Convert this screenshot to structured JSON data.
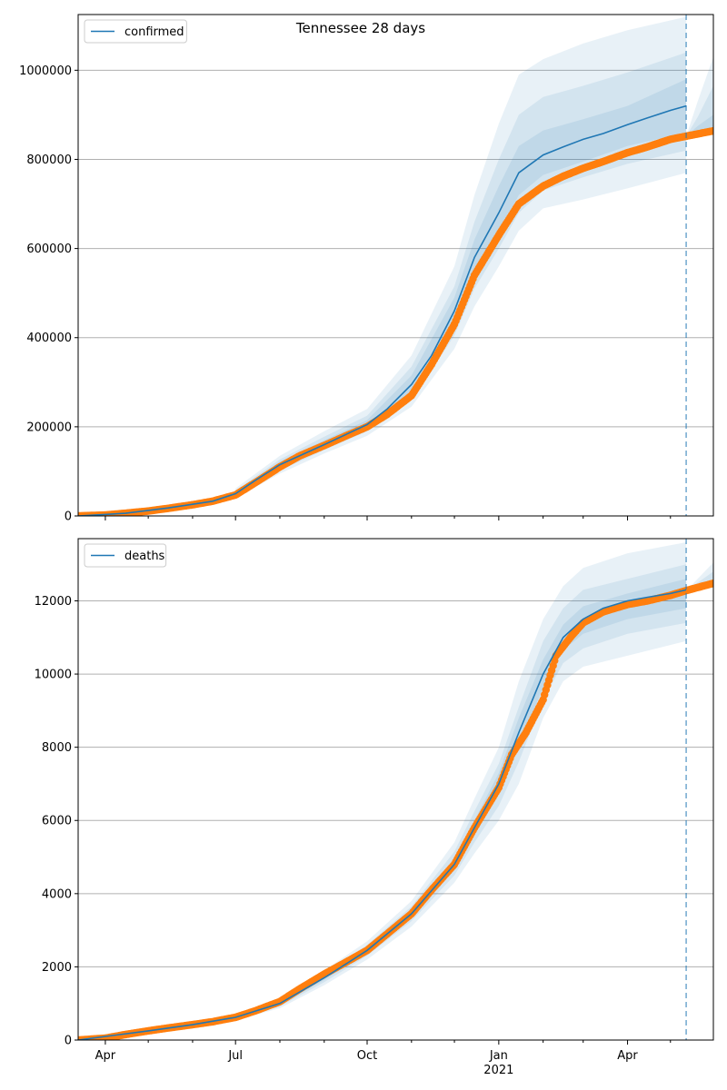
{
  "title": "Tennessee 28 days",
  "colors": {
    "forecast": "#1f77b4",
    "band": "#1f77b4",
    "observed": "#ff7f0e",
    "grid": "#b0b0b0",
    "vline": "#1f77b4"
  },
  "x_axis": {
    "range": [
      "2020-03-13",
      "2021-05-31"
    ],
    "tick_labels": [
      {
        "date": "2020-04-01",
        "label": "Apr"
      },
      {
        "date": "2020-07-01",
        "label": "Jul"
      },
      {
        "date": "2020-10-01",
        "label": "Oct"
      },
      {
        "date": "2021-01-01",
        "label": "Jan"
      },
      {
        "date": "2021-04-01",
        "label": "Apr"
      }
    ],
    "year_label": "2021"
  },
  "forecast_start": "2021-05-12",
  "chart_data": [
    {
      "type": "line",
      "legend": [
        "confirmed"
      ],
      "legend_position": "upper-left",
      "grid": true,
      "ylim": [
        0,
        1125000
      ],
      "yticks": [
        0,
        200000,
        400000,
        600000,
        800000,
        1000000
      ],
      "ytick_labels": [
        "0",
        "200000",
        "400000",
        "600000",
        "800000",
        "1000000"
      ],
      "series": [
        {
          "name": "confirmed",
          "kind": "forecast-median",
          "x": [
            "2020-03-13",
            "2020-04-15",
            "2020-05-15",
            "2020-06-15",
            "2020-07-01",
            "2020-07-15",
            "2020-08-01",
            "2020-09-01",
            "2020-10-01",
            "2020-10-15",
            "2020-11-01",
            "2020-11-15",
            "2020-12-01",
            "2020-12-15",
            "2021-01-01",
            "2021-01-15",
            "2021-02-01",
            "2021-02-15",
            "2021-03-01",
            "2021-03-15",
            "2021-04-01",
            "2021-04-15",
            "2021-05-01",
            "2021-05-12"
          ],
          "y": [
            0,
            6000,
            18000,
            33000,
            50000,
            80000,
            115000,
            160000,
            205000,
            240000,
            295000,
            360000,
            460000,
            580000,
            680000,
            770000,
            810000,
            828000,
            845000,
            858000,
            878000,
            893000,
            910000,
            920000
          ]
        },
        {
          "kind": "observed",
          "x": [
            "2020-03-13",
            "2020-04-01",
            "2020-04-15",
            "2020-05-01",
            "2020-05-15",
            "2020-06-01",
            "2020-06-15",
            "2020-07-01",
            "2020-07-15",
            "2020-08-01",
            "2020-08-15",
            "2020-09-01",
            "2020-09-15",
            "2020-10-01",
            "2020-10-15",
            "2020-11-01",
            "2020-11-15",
            "2020-12-01",
            "2020-12-15",
            "2021-01-01",
            "2021-01-15",
            "2021-02-01",
            "2021-02-15",
            "2021-03-01",
            "2021-03-15",
            "2021-04-01",
            "2021-04-15",
            "2021-05-01",
            "2021-05-12",
            "2021-05-31"
          ],
          "y": [
            0,
            2000,
            6000,
            11000,
            17000,
            25000,
            33000,
            47000,
            75000,
            110000,
            135000,
            158000,
            178000,
            200000,
            228000,
            270000,
            340000,
            430000,
            540000,
            630000,
            700000,
            740000,
            762000,
            780000,
            795000,
            815000,
            828000,
            845000,
            852000,
            864000
          ]
        }
      ],
      "bands": [
        {
          "x": [
            "2020-07-01",
            "2020-08-01",
            "2020-09-01",
            "2020-10-01",
            "2020-11-01",
            "2020-12-01",
            "2020-12-15",
            "2021-01-01",
            "2021-01-15",
            "2021-02-01",
            "2021-03-01",
            "2021-04-01",
            "2021-05-12"
          ],
          "lower": [
            40000,
            95000,
            140000,
            180000,
            245000,
            375000,
            470000,
            560000,
            640000,
            690000,
            710000,
            735000,
            770000
          ],
          "upper": [
            62000,
            135000,
            190000,
            240000,
            360000,
            560000,
            720000,
            880000,
            990000,
            1025000,
            1060000,
            1090000,
            1120000
          ]
        },
        {
          "x": [
            "2020-07-01",
            "2020-08-01",
            "2020-09-01",
            "2020-10-01",
            "2020-11-01",
            "2020-12-01",
            "2020-12-15",
            "2021-01-01",
            "2021-01-15",
            "2021-02-01",
            "2021-03-01",
            "2021-04-01",
            "2021-05-12"
          ],
          "lower": [
            44000,
            102000,
            148000,
            190000,
            260000,
            405000,
            510000,
            600000,
            680000,
            730000,
            760000,
            790000,
            820000
          ],
          "upper": [
            57000,
            127000,
            178000,
            225000,
            335000,
            515000,
            660000,
            800000,
            900000,
            940000,
            965000,
            995000,
            1040000
          ]
        },
        {
          "x": [
            "2020-07-01",
            "2020-08-01",
            "2020-09-01",
            "2020-10-01",
            "2020-11-01",
            "2020-12-01",
            "2020-12-15",
            "2021-01-01",
            "2021-01-15",
            "2021-02-01",
            "2021-03-01",
            "2021-04-01",
            "2021-05-12"
          ],
          "lower": [
            47000,
            108000,
            153000,
            196000,
            275000,
            430000,
            540000,
            635000,
            720000,
            765000,
            795000,
            830000,
            860000
          ],
          "upper": [
            54000,
            122000,
            170000,
            215000,
            315000,
            490000,
            620000,
            740000,
            830000,
            865000,
            890000,
            920000,
            980000
          ]
        },
        {
          "x": [
            "2021-05-12",
            "2021-05-20",
            "2021-05-31"
          ],
          "lower": [
            852000,
            856000,
            860000
          ],
          "upper": [
            852000,
            930000,
            1030000
          ]
        },
        {
          "x": [
            "2021-05-12",
            "2021-05-20",
            "2021-05-31"
          ],
          "lower": [
            852000,
            857000,
            862000
          ],
          "upper": [
            852000,
            895000,
            965000
          ]
        },
        {
          "x": [
            "2021-05-12",
            "2021-05-20",
            "2021-05-31"
          ],
          "lower": [
            852000,
            858000,
            864000
          ],
          "upper": [
            852000,
            875000,
            900000
          ]
        }
      ]
    },
    {
      "type": "line",
      "legend": [
        "deaths"
      ],
      "legend_position": "upper-left",
      "grid": true,
      "ylim": [
        0,
        13700
      ],
      "yticks": [
        0,
        2000,
        4000,
        6000,
        8000,
        10000,
        12000
      ],
      "ytick_labels": [
        "0",
        "2000",
        "4000",
        "6000",
        "8000",
        "10000",
        "12000"
      ],
      "series": [
        {
          "name": "deaths",
          "kind": "forecast-median",
          "x": [
            "2020-03-13",
            "2020-05-01",
            "2020-06-01",
            "2020-07-01",
            "2020-08-01",
            "2020-09-01",
            "2020-10-01",
            "2020-11-01",
            "2020-12-01",
            "2020-12-15",
            "2021-01-01",
            "2021-01-15",
            "2021-02-01",
            "2021-02-15",
            "2021-03-01",
            "2021-03-15",
            "2021-04-01",
            "2021-04-15",
            "2021-05-01",
            "2021-05-12"
          ],
          "y": [
            0,
            250,
            420,
            620,
            1000,
            1700,
            2450,
            3450,
            4800,
            5800,
            7000,
            8400,
            10000,
            11000,
            11500,
            11800,
            12000,
            12100,
            12200,
            12300
          ]
        },
        {
          "kind": "observed",
          "x": [
            "2020-03-13",
            "2020-04-01",
            "2020-04-15",
            "2020-05-01",
            "2020-05-15",
            "2020-06-01",
            "2020-06-15",
            "2020-07-01",
            "2020-07-15",
            "2020-08-01",
            "2020-08-15",
            "2020-09-01",
            "2020-09-15",
            "2020-10-01",
            "2020-10-15",
            "2020-11-01",
            "2020-11-15",
            "2020-12-01",
            "2020-12-15",
            "2021-01-01",
            "2021-01-10",
            "2021-01-20",
            "2021-02-01",
            "2021-02-10",
            "2021-02-20",
            "2021-03-01",
            "2021-03-15",
            "2021-04-01",
            "2021-04-15",
            "2021-05-01",
            "2021-05-12",
            "2021-05-31"
          ],
          "y": [
            0,
            50,
            150,
            250,
            330,
            420,
            500,
            620,
            800,
            1050,
            1400,
            1800,
            2100,
            2450,
            2900,
            3450,
            4100,
            4800,
            5800,
            6900,
            7800,
            8400,
            9300,
            10500,
            11000,
            11400,
            11700,
            11900,
            12000,
            12150,
            12280,
            12480
          ]
        }
      ],
      "bands": [
        {
          "x": [
            "2020-07-01",
            "2020-08-01",
            "2020-09-01",
            "2020-10-01",
            "2020-11-01",
            "2020-12-01",
            "2020-12-15",
            "2021-01-01",
            "2021-01-15",
            "2021-02-01",
            "2021-02-15",
            "2021-03-01",
            "2021-04-01",
            "2021-05-12"
          ],
          "lower": [
            540,
            870,
            1500,
            2200,
            3100,
            4300,
            5100,
            6000,
            7000,
            8800,
            9800,
            10200,
            10500,
            10900
          ],
          "upper": [
            700,
            1150,
            1900,
            2700,
            3800,
            5400,
            6600,
            8000,
            9800,
            11500,
            12400,
            12900,
            13300,
            13600
          ]
        },
        {
          "x": [
            "2020-07-01",
            "2020-08-01",
            "2020-09-01",
            "2020-10-01",
            "2020-11-01",
            "2020-12-01",
            "2020-12-15",
            "2021-01-01",
            "2021-01-15",
            "2021-02-01",
            "2021-02-15",
            "2021-03-01",
            "2021-04-01",
            "2021-05-12"
          ],
          "lower": [
            570,
            920,
            1580,
            2300,
            3250,
            4500,
            5400,
            6400,
            7600,
            9300,
            10300,
            10700,
            11100,
            11400
          ],
          "upper": [
            670,
            1090,
            1820,
            2600,
            3650,
            5150,
            6250,
            7550,
            9100,
            10900,
            11800,
            12300,
            12600,
            13000
          ]
        },
        {
          "x": [
            "2020-07-01",
            "2020-08-01",
            "2020-09-01",
            "2020-10-01",
            "2020-11-01",
            "2020-12-01",
            "2020-12-15",
            "2021-01-01",
            "2021-01-15",
            "2021-02-01",
            "2021-02-15",
            "2021-03-01",
            "2021-04-01",
            "2021-05-12"
          ],
          "lower": [
            595,
            960,
            1640,
            2380,
            3350,
            4650,
            5600,
            6700,
            8000,
            9650,
            10650,
            11100,
            11500,
            11800
          ],
          "upper": [
            645,
            1045,
            1760,
            2520,
            3550,
            4950,
            6000,
            7300,
            8800,
            10400,
            11350,
            11850,
            12200,
            12600
          ]
        },
        {
          "x": [
            "2021-05-12",
            "2021-05-20",
            "2021-05-31"
          ],
          "lower": [
            12280,
            12300,
            12420
          ],
          "upper": [
            12280,
            12600,
            13050
          ]
        },
        {
          "x": [
            "2021-05-12",
            "2021-05-20",
            "2021-05-31"
          ],
          "lower": [
            12280,
            12320,
            12450
          ],
          "upper": [
            12280,
            12500,
            12800
          ]
        }
      ]
    }
  ]
}
